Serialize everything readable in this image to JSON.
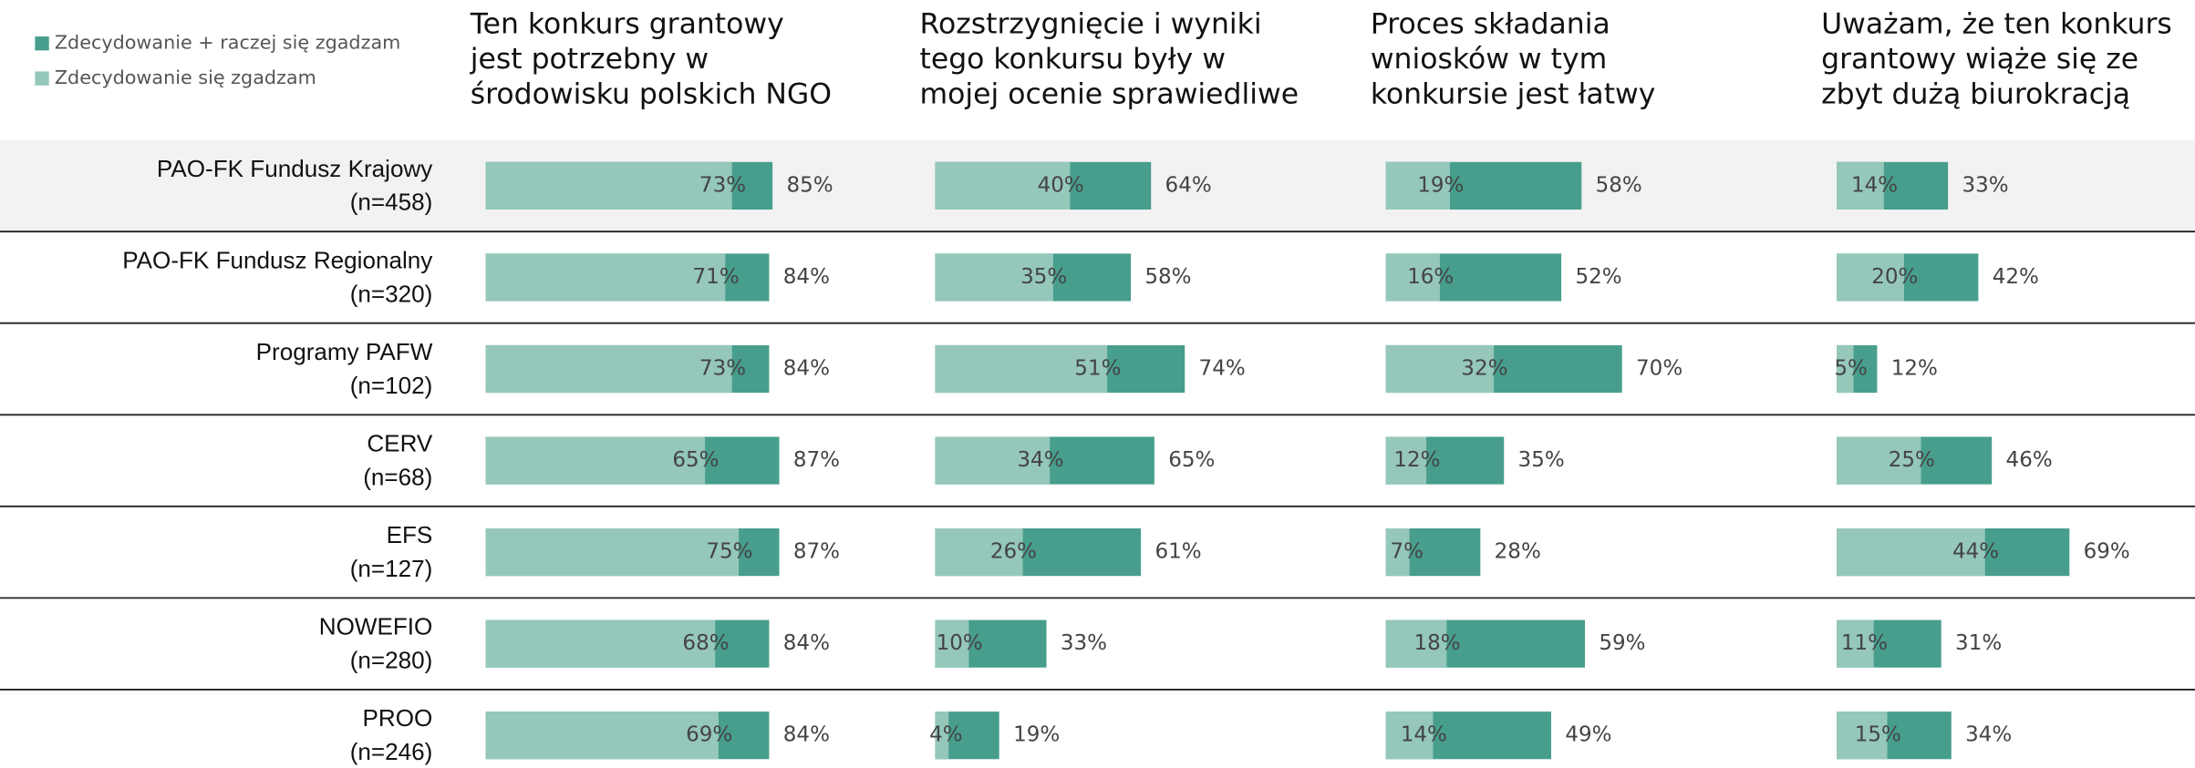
{
  "chart_data": {
    "type": "bar",
    "categories": [
      "PAO-FK Fundusz Krajowy",
      "PAO-FK Fundusz Regionalny",
      "Programy PAFW",
      "CERV",
      "EFS",
      "NOWEFIO",
      "PROO"
    ],
    "sample_sizes": [
      "(n=458)",
      "(n=320)",
      "(n=102)",
      "(n=68)",
      "(n=127)",
      "(n=280)",
      "(n=246)"
    ],
    "legend": [
      {
        "name": "Zdecydowanie + raczej się zgadzam",
        "color": "#479e8c"
      },
      {
        "name": "Zdecydowanie się zgadzam",
        "color": "#95c7bb"
      }
    ],
    "xlim": [
      0,
      100
    ],
    "panels": [
      {
        "title": [
          "Ten konkurs grantowy",
          "jest potrzebny w",
          "środowisku polskich NGO"
        ],
        "total": [
          85,
          84,
          84,
          87,
          87,
          84,
          84
        ],
        "total_labels": [
          "85%",
          "84%",
          "84%",
          "87%",
          "87%",
          "84%",
          "84%"
        ],
        "strong": [
          73,
          71,
          73,
          65,
          75,
          68,
          69
        ],
        "strong_labels": [
          "73%",
          "71%",
          "73%",
          "65%",
          "75%",
          "68%",
          "69%"
        ]
      },
      {
        "title": [
          "Rozstrzygnięcie i wyniki",
          "tego konkursu były w",
          "mojej ocenie sprawiedliwe"
        ],
        "total": [
          64,
          58,
          74,
          65,
          61,
          33,
          19
        ],
        "total_labels": [
          "64%",
          "58%",
          "74%",
          "65%",
          "61%",
          "33%",
          "19%"
        ],
        "strong": [
          40,
          35,
          51,
          34,
          26,
          10,
          4
        ],
        "strong_labels": [
          "40%",
          "35%",
          "51%",
          "34%",
          "26%",
          "10%",
          "4%"
        ]
      },
      {
        "title": [
          "Proces składania",
          "wniosków w tym",
          "konkursie jest łatwy"
        ],
        "total": [
          58,
          52,
          70,
          35,
          28,
          59,
          49
        ],
        "total_labels": [
          "58%",
          "52%",
          "70%",
          "35%",
          "28%",
          "59%",
          "49%"
        ],
        "strong": [
          19,
          16,
          32,
          12,
          7,
          18,
          14
        ],
        "strong_labels": [
          "19%",
          "16%",
          "32%",
          "12%",
          "7%",
          "18%",
          "14%"
        ]
      },
      {
        "title": [
          "Uważam, że ten konkurs",
          "grantowy wiąże się ze",
          "zbyt dużą biurokracją"
        ],
        "total": [
          33,
          42,
          12,
          46,
          69,
          31,
          34
        ],
        "total_labels": [
          "33%",
          "42%",
          "12%",
          "46%",
          "69%",
          "31%",
          "34%"
        ],
        "strong": [
          14,
          20,
          5,
          25,
          44,
          11,
          15
        ],
        "strong_labels": [
          "14%",
          "20%",
          "5%",
          "25%",
          "44%",
          "11%",
          "15%"
        ]
      }
    ]
  }
}
